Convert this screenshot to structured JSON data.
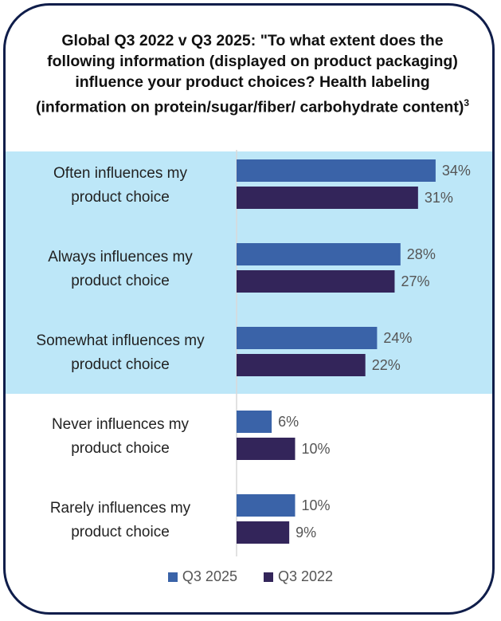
{
  "chart_data": {
    "type": "bar",
    "orientation": "horizontal",
    "title": "Global Q3 2022 v Q3 2025: \"To what extent does the following information (displayed on product packaging) influence your product choices? Health labeling (information on protein/sugar/fiber/ carbohydrate content)",
    "title_superscript": "3",
    "categories": [
      "Often influences my product choice",
      "Always influences my product choice",
      "Somewhat influences my product choice",
      "Never influences my product choice",
      "Rarely influences my product choice"
    ],
    "category_lines": [
      [
        "Often influences my",
        "product choice"
      ],
      [
        "Always influences my",
        "product choice"
      ],
      [
        "Somewhat influences my",
        "product choice"
      ],
      [
        "Never influences my",
        "product choice"
      ],
      [
        "Rarely influences my",
        "product choice"
      ]
    ],
    "series": [
      {
        "name": "Q3 2025",
        "color": "#3a63a8",
        "values": [
          34,
          28,
          24,
          6,
          10
        ]
      },
      {
        "name": "Q3 2022",
        "color": "#33255a",
        "values": [
          31,
          27,
          22,
          10,
          9
        ]
      }
    ],
    "value_suffix": "%",
    "highlight_color": "#bde7f8",
    "highlighted_categories": 3,
    "xlim": [
      0,
      40
    ]
  }
}
